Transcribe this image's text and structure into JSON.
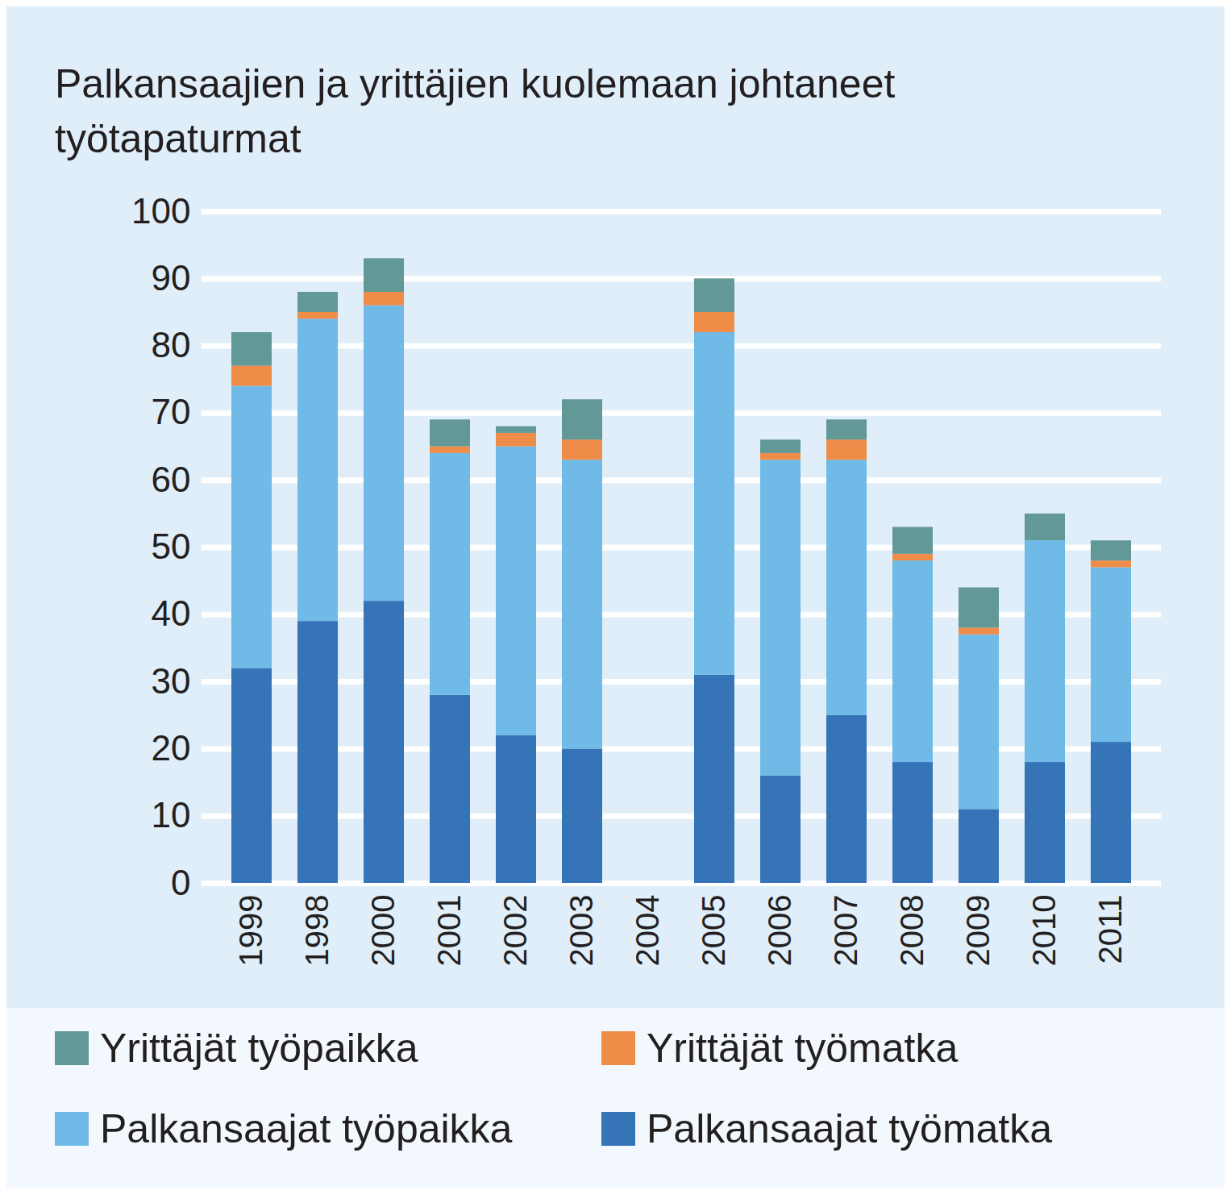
{
  "chart_data": {
    "type": "bar",
    "stacked": true,
    "title": "Palkansaajien ja yrittäjien kuolemaan johtaneet työtapaturmat",
    "categories": [
      "1999",
      "1998",
      "2000",
      "2001",
      "2002",
      "2003",
      "2004",
      "2005",
      "2006",
      "2007",
      "2008",
      "2009",
      "2010",
      "2011"
    ],
    "series": [
      {
        "name": "Yrittäjät työpaikka",
        "color": "#629896",
        "values": [
          5,
          3,
          5,
          4,
          1,
          6,
          null,
          5,
          2,
          3,
          4,
          6,
          4,
          3
        ]
      },
      {
        "name": "Yrittäjät työmatka",
        "color": "#ee8c48",
        "values": [
          3,
          1,
          2,
          1,
          2,
          3,
          null,
          3,
          1,
          3,
          1,
          1,
          0,
          1
        ]
      },
      {
        "name": "Palkansaajat työpaikka",
        "color": "#6fbae6",
        "values": [
          42,
          45,
          44,
          36,
          43,
          43,
          null,
          51,
          47,
          38,
          30,
          26,
          33,
          26
        ]
      },
      {
        "name": "Palkansaajat työmatka",
        "color": "#3674b8",
        "values": [
          32,
          39,
          42,
          28,
          22,
          20,
          null,
          31,
          16,
          25,
          18,
          11,
          18,
          21
        ]
      }
    ],
    "ylim": [
      0,
      100
    ],
    "yticks": [
      0,
      10,
      20,
      30,
      40,
      50,
      60,
      70,
      80,
      90,
      100
    ],
    "grid": true,
    "legend": "bottom"
  }
}
